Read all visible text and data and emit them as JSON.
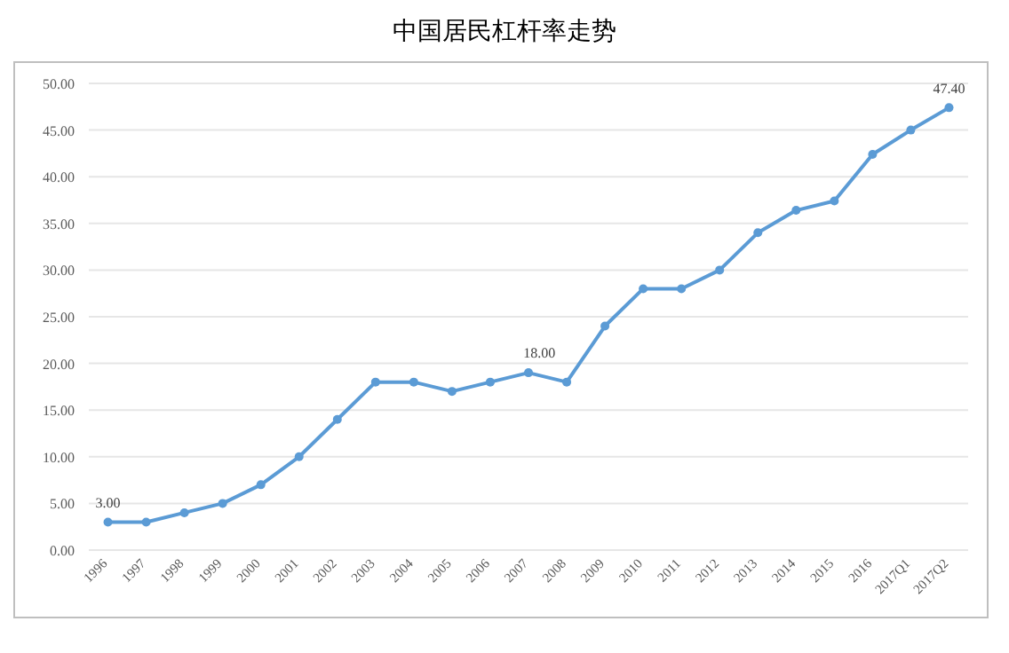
{
  "chart_data": {
    "type": "line",
    "title": "中国居民杠杆率走势",
    "categories": [
      "1996",
      "1997",
      "1998",
      "1999",
      "2000",
      "2001",
      "2002",
      "2003",
      "2004",
      "2005",
      "2006",
      "2007",
      "2008",
      "2009",
      "2010",
      "2011",
      "2012",
      "2013",
      "2014",
      "2015",
      "2016",
      "2017Q1",
      "2017Q2"
    ],
    "series": [
      {
        "color": "#5b9bd5",
        "values": [
          3,
          3,
          4,
          5,
          7,
          10,
          14,
          18,
          18,
          17,
          18,
          19,
          18,
          24,
          28,
          28,
          30,
          34,
          36.4,
          37.4,
          42.4,
          45,
          47.4
        ],
        "value_labels": [
          "3.00",
          null,
          null,
          null,
          null,
          null,
          null,
          null,
          null,
          null,
          null,
          null,
          "18.00",
          null,
          null,
          null,
          null,
          null,
          null,
          null,
          null,
          null,
          "47.40"
        ]
      }
    ],
    "ylim": [
      0,
      50
    ],
    "yticks": [
      {
        "value": 0,
        "label": "0.00"
      },
      {
        "value": 5,
        "label": "5.00"
      },
      {
        "value": 10,
        "label": "10.00"
      },
      {
        "value": 15,
        "label": "15.00"
      },
      {
        "value": 20,
        "label": "20.00"
      },
      {
        "value": 25,
        "label": "25.00"
      },
      {
        "value": 30,
        "label": "30.00"
      },
      {
        "value": 35,
        "label": "35.00"
      },
      {
        "value": 40,
        "label": "40.00"
      },
      {
        "value": 45,
        "label": "45.00"
      },
      {
        "value": 50,
        "label": "50.00"
      }
    ],
    "grid": "y",
    "marker": "circle",
    "line_style": "solid"
  }
}
